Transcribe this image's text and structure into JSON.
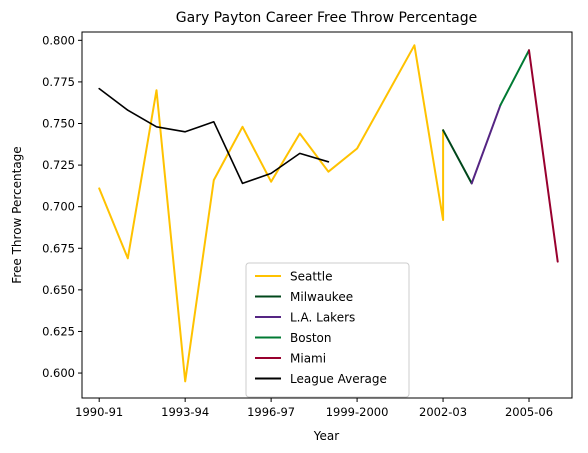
{
  "chart_data": {
    "type": "line",
    "title": "Gary Payton Career Free Throw Percentage",
    "xlabel": "Year",
    "ylabel": "Free Throw Percentage",
    "ylim": [
      0.585,
      0.805
    ],
    "xlim": [
      "1990-91",
      "2007-08"
    ],
    "grid": false,
    "legend_position": "bottom-center",
    "x_ticks": [
      "1990-91",
      "1993-94",
      "1996-97",
      "1999-2000",
      "2002-03",
      "2005-06"
    ],
    "y_ticks": [
      0.6,
      0.625,
      0.65,
      0.675,
      0.7,
      0.725,
      0.75,
      0.775,
      0.8
    ],
    "series": [
      {
        "name": "Seattle",
        "color": "#FFC200",
        "points": [
          [
            "1990-91",
            0.711
          ],
          [
            "1991-92",
            0.669
          ],
          [
            "1992-93",
            0.77
          ],
          [
            "1993-94",
            0.595
          ],
          [
            "1994-95",
            0.716
          ],
          [
            "1995-96",
            0.748
          ],
          [
            "1996-97",
            0.715
          ],
          [
            "1997-98",
            0.744
          ],
          [
            "1998-99",
            0.721
          ],
          [
            "1999-2000",
            0.735
          ],
          [
            "2001-02",
            0.797
          ],
          [
            "2002-03",
            0.692
          ],
          [
            "2002-03",
            0.746
          ]
        ]
      },
      {
        "name": "Milwaukee",
        "color": "#00471B",
        "points": [
          [
            "2002-03",
            0.746
          ],
          [
            "2003-04",
            0.714
          ]
        ]
      },
      {
        "name": "L.A. Lakers",
        "color": "#552583",
        "points": [
          [
            "2003-04",
            0.714
          ],
          [
            "2004-05",
            0.761
          ]
        ]
      },
      {
        "name": "Boston",
        "color": "#007A33",
        "points": [
          [
            "2004-05",
            0.761
          ],
          [
            "2005-06",
            0.794
          ]
        ]
      },
      {
        "name": "Miami",
        "color": "#98002E",
        "points": [
          [
            "2005-06",
            0.794
          ],
          [
            "2006-07",
            0.667
          ]
        ]
      },
      {
        "name": "League Average",
        "color": "#000000",
        "points": [
          [
            "1990-91",
            0.771
          ],
          [
            "1991-92",
            0.758
          ],
          [
            "1992-93",
            0.748
          ],
          [
            "1993-94",
            0.745
          ],
          [
            "1994-95",
            0.751
          ],
          [
            "1995-96",
            0.714
          ],
          [
            "1996-97",
            0.72
          ],
          [
            "1997-98",
            0.732
          ],
          [
            "1998-99",
            0.727
          ]
        ]
      }
    ]
  }
}
